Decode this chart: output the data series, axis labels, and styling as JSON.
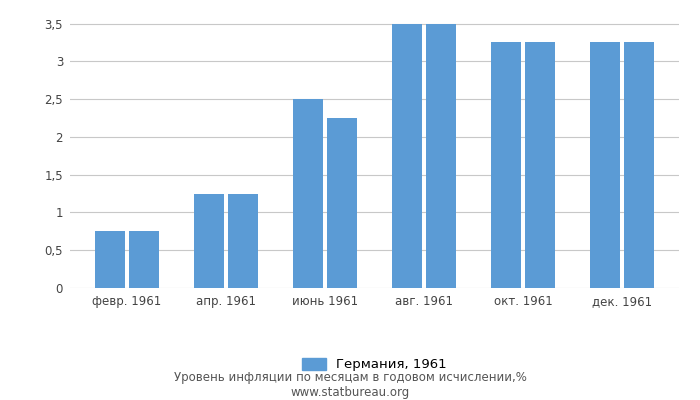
{
  "months": [
    "февр. 1961",
    "апр. 1961",
    "июнь 1961",
    "авг. 1961",
    "окт. 1961",
    "дек. 1961"
  ],
  "values": [
    [
      0.75,
      0.75
    ],
    [
      1.25,
      1.25
    ],
    [
      2.5,
      2.25
    ],
    [
      3.5,
      3.5
    ],
    [
      3.25,
      3.25
    ],
    [
      3.25,
      3.25
    ]
  ],
  "bar_color": "#5b9bd5",
  "ylim": [
    0,
    3.6
  ],
  "yticks": [
    0,
    0.5,
    1.0,
    1.5,
    2.0,
    2.5,
    3.0,
    3.5
  ],
  "ytick_labels": [
    "0",
    "0,5",
    "1",
    "1,5",
    "2",
    "2,5",
    "3",
    "3,5"
  ],
  "legend_label": "Германия, 1961",
  "footer_line1": "Уровень инфляции по месяцам в годовом исчислении,%",
  "footer_line2": "www.statbureau.org",
  "background_color": "#ffffff",
  "grid_color": "#c8c8c8"
}
